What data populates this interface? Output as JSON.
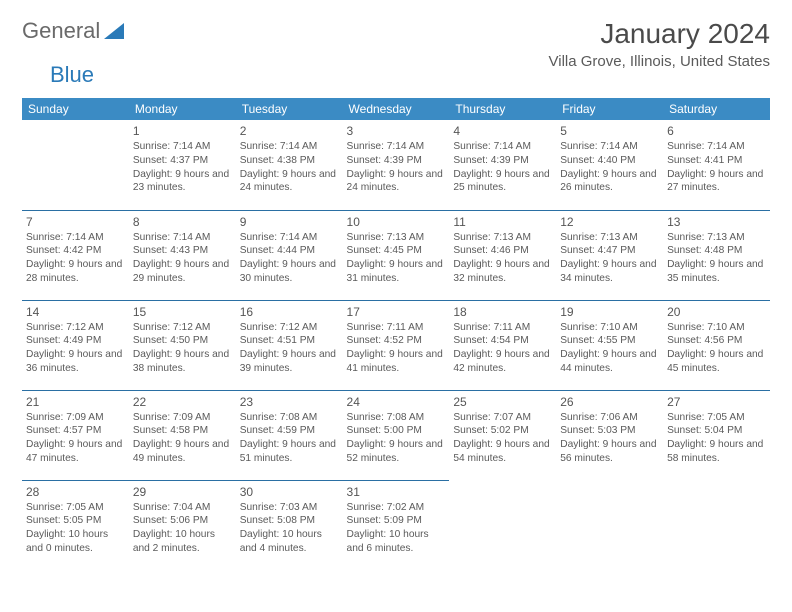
{
  "logo": {
    "part1": "General",
    "part2": "Blue"
  },
  "title": "January 2024",
  "subtitle": "Villa Grove, Illinois, United States",
  "header_bg": "#3b8bc4",
  "header_fg": "#ffffff",
  "rule_color": "#2a6fa3",
  "text_color": "#5a5a5a",
  "days": [
    "Sunday",
    "Monday",
    "Tuesday",
    "Wednesday",
    "Thursday",
    "Friday",
    "Saturday"
  ],
  "weeks": [
    [
      null,
      {
        "n": "1",
        "sr": "Sunrise: 7:14 AM",
        "ss": "Sunset: 4:37 PM",
        "dl": "Daylight: 9 hours and 23 minutes."
      },
      {
        "n": "2",
        "sr": "Sunrise: 7:14 AM",
        "ss": "Sunset: 4:38 PM",
        "dl": "Daylight: 9 hours and 24 minutes."
      },
      {
        "n": "3",
        "sr": "Sunrise: 7:14 AM",
        "ss": "Sunset: 4:39 PM",
        "dl": "Daylight: 9 hours and 24 minutes."
      },
      {
        "n": "4",
        "sr": "Sunrise: 7:14 AM",
        "ss": "Sunset: 4:39 PM",
        "dl": "Daylight: 9 hours and 25 minutes."
      },
      {
        "n": "5",
        "sr": "Sunrise: 7:14 AM",
        "ss": "Sunset: 4:40 PM",
        "dl": "Daylight: 9 hours and 26 minutes."
      },
      {
        "n": "6",
        "sr": "Sunrise: 7:14 AM",
        "ss": "Sunset: 4:41 PM",
        "dl": "Daylight: 9 hours and 27 minutes."
      }
    ],
    [
      {
        "n": "7",
        "sr": "Sunrise: 7:14 AM",
        "ss": "Sunset: 4:42 PM",
        "dl": "Daylight: 9 hours and 28 minutes."
      },
      {
        "n": "8",
        "sr": "Sunrise: 7:14 AM",
        "ss": "Sunset: 4:43 PM",
        "dl": "Daylight: 9 hours and 29 minutes."
      },
      {
        "n": "9",
        "sr": "Sunrise: 7:14 AM",
        "ss": "Sunset: 4:44 PM",
        "dl": "Daylight: 9 hours and 30 minutes."
      },
      {
        "n": "10",
        "sr": "Sunrise: 7:13 AM",
        "ss": "Sunset: 4:45 PM",
        "dl": "Daylight: 9 hours and 31 minutes."
      },
      {
        "n": "11",
        "sr": "Sunrise: 7:13 AM",
        "ss": "Sunset: 4:46 PM",
        "dl": "Daylight: 9 hours and 32 minutes."
      },
      {
        "n": "12",
        "sr": "Sunrise: 7:13 AM",
        "ss": "Sunset: 4:47 PM",
        "dl": "Daylight: 9 hours and 34 minutes."
      },
      {
        "n": "13",
        "sr": "Sunrise: 7:13 AM",
        "ss": "Sunset: 4:48 PM",
        "dl": "Daylight: 9 hours and 35 minutes."
      }
    ],
    [
      {
        "n": "14",
        "sr": "Sunrise: 7:12 AM",
        "ss": "Sunset: 4:49 PM",
        "dl": "Daylight: 9 hours and 36 minutes."
      },
      {
        "n": "15",
        "sr": "Sunrise: 7:12 AM",
        "ss": "Sunset: 4:50 PM",
        "dl": "Daylight: 9 hours and 38 minutes."
      },
      {
        "n": "16",
        "sr": "Sunrise: 7:12 AM",
        "ss": "Sunset: 4:51 PM",
        "dl": "Daylight: 9 hours and 39 minutes."
      },
      {
        "n": "17",
        "sr": "Sunrise: 7:11 AM",
        "ss": "Sunset: 4:52 PM",
        "dl": "Daylight: 9 hours and 41 minutes."
      },
      {
        "n": "18",
        "sr": "Sunrise: 7:11 AM",
        "ss": "Sunset: 4:54 PM",
        "dl": "Daylight: 9 hours and 42 minutes."
      },
      {
        "n": "19",
        "sr": "Sunrise: 7:10 AM",
        "ss": "Sunset: 4:55 PM",
        "dl": "Daylight: 9 hours and 44 minutes."
      },
      {
        "n": "20",
        "sr": "Sunrise: 7:10 AM",
        "ss": "Sunset: 4:56 PM",
        "dl": "Daylight: 9 hours and 45 minutes."
      }
    ],
    [
      {
        "n": "21",
        "sr": "Sunrise: 7:09 AM",
        "ss": "Sunset: 4:57 PM",
        "dl": "Daylight: 9 hours and 47 minutes."
      },
      {
        "n": "22",
        "sr": "Sunrise: 7:09 AM",
        "ss": "Sunset: 4:58 PM",
        "dl": "Daylight: 9 hours and 49 minutes."
      },
      {
        "n": "23",
        "sr": "Sunrise: 7:08 AM",
        "ss": "Sunset: 4:59 PM",
        "dl": "Daylight: 9 hours and 51 minutes."
      },
      {
        "n": "24",
        "sr": "Sunrise: 7:08 AM",
        "ss": "Sunset: 5:00 PM",
        "dl": "Daylight: 9 hours and 52 minutes."
      },
      {
        "n": "25",
        "sr": "Sunrise: 7:07 AM",
        "ss": "Sunset: 5:02 PM",
        "dl": "Daylight: 9 hours and 54 minutes."
      },
      {
        "n": "26",
        "sr": "Sunrise: 7:06 AM",
        "ss": "Sunset: 5:03 PM",
        "dl": "Daylight: 9 hours and 56 minutes."
      },
      {
        "n": "27",
        "sr": "Sunrise: 7:05 AM",
        "ss": "Sunset: 5:04 PM",
        "dl": "Daylight: 9 hours and 58 minutes."
      }
    ],
    [
      {
        "n": "28",
        "sr": "Sunrise: 7:05 AM",
        "ss": "Sunset: 5:05 PM",
        "dl": "Daylight: 10 hours and 0 minutes."
      },
      {
        "n": "29",
        "sr": "Sunrise: 7:04 AM",
        "ss": "Sunset: 5:06 PM",
        "dl": "Daylight: 10 hours and 2 minutes."
      },
      {
        "n": "30",
        "sr": "Sunrise: 7:03 AM",
        "ss": "Sunset: 5:08 PM",
        "dl": "Daylight: 10 hours and 4 minutes."
      },
      {
        "n": "31",
        "sr": "Sunrise: 7:02 AM",
        "ss": "Sunset: 5:09 PM",
        "dl": "Daylight: 10 hours and 6 minutes."
      },
      null,
      null,
      null
    ]
  ]
}
